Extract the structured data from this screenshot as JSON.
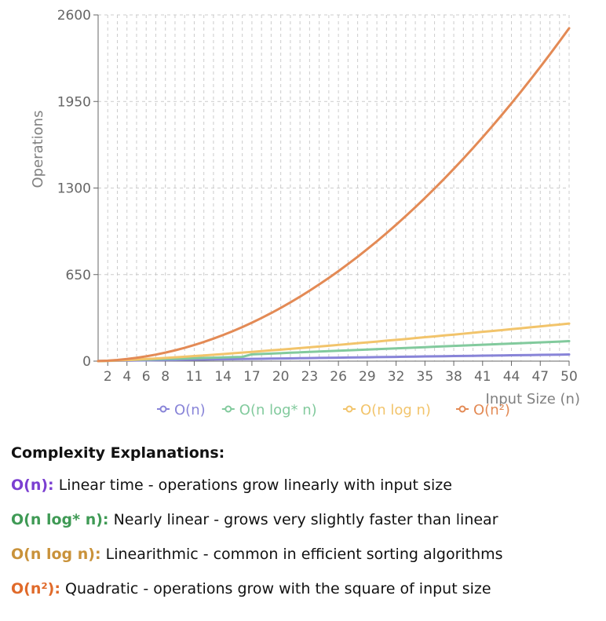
{
  "chart_data": {
    "type": "line",
    "title": "",
    "xlabel": "Input Size (n)",
    "ylabel": "Operations",
    "x": [
      1,
      2,
      3,
      4,
      5,
      6,
      7,
      8,
      9,
      10,
      11,
      12,
      13,
      14,
      15,
      16,
      17,
      18,
      19,
      20,
      21,
      22,
      23,
      24,
      25,
      26,
      27,
      28,
      29,
      30,
      31,
      32,
      33,
      34,
      35,
      36,
      37,
      38,
      39,
      40,
      41,
      42,
      43,
      44,
      45,
      46,
      47,
      48,
      49,
      50
    ],
    "x_ticks": [
      2,
      4,
      6,
      8,
      11,
      14,
      17,
      20,
      23,
      26,
      29,
      32,
      35,
      38,
      41,
      44,
      47,
      50
    ],
    "xlim": [
      1,
      50
    ],
    "ylim": [
      0,
      2600
    ],
    "y_ticks": [
      0,
      650,
      1300,
      1950,
      2600
    ],
    "grid": true,
    "legend_position": "bottom",
    "series": [
      {
        "name": "O(n)",
        "color": "#8884d8",
        "values": [
          1,
          2,
          3,
          4,
          5,
          6,
          7,
          8,
          9,
          10,
          11,
          12,
          13,
          14,
          15,
          16,
          17,
          18,
          19,
          20,
          21,
          22,
          23,
          24,
          25,
          26,
          27,
          28,
          29,
          30,
          31,
          32,
          33,
          34,
          35,
          36,
          37,
          38,
          39,
          40,
          41,
          42,
          43,
          44,
          45,
          46,
          47,
          48,
          49,
          50
        ]
      },
      {
        "name": "O(n log* n)",
        "color": "#82ca9d",
        "values": [
          0,
          2,
          6,
          8,
          10,
          12,
          14,
          16,
          18,
          20,
          22,
          24,
          26,
          28,
          30,
          32,
          51,
          54,
          57,
          60,
          63,
          66,
          69,
          72,
          75,
          78,
          81,
          84,
          87,
          90,
          93,
          96,
          99,
          102,
          105,
          108,
          111,
          114,
          117,
          120,
          123,
          126,
          129,
          132,
          135,
          138,
          141,
          144,
          147,
          150
        ]
      },
      {
        "name": "O(n log n)",
        "color": "#f2c46b",
        "values": [
          0,
          2,
          5,
          8,
          12,
          16,
          20,
          24,
          29,
          33,
          38,
          43,
          48,
          53,
          59,
          64,
          69,
          75,
          81,
          86,
          92,
          98,
          104,
          110,
          116,
          122,
          128,
          135,
          141,
          147,
          154,
          160,
          166,
          173,
          180,
          186,
          193,
          199,
          206,
          213,
          220,
          226,
          233,
          240,
          247,
          254,
          261,
          268,
          275,
          282
        ]
      },
      {
        "name": "O(n²)",
        "color": "#e38a55",
        "values": [
          1,
          4,
          9,
          16,
          25,
          36,
          49,
          64,
          81,
          100,
          121,
          144,
          169,
          196,
          225,
          256,
          289,
          324,
          361,
          400,
          441,
          484,
          529,
          576,
          625,
          676,
          729,
          784,
          841,
          900,
          961,
          1024,
          1089,
          1156,
          1225,
          1296,
          1369,
          1444,
          1521,
          1600,
          1681,
          1764,
          1849,
          1936,
          2025,
          2116,
          2209,
          2304,
          2401,
          2500
        ]
      }
    ]
  },
  "explanations": {
    "heading": "Complexity Explanations:",
    "items": [
      {
        "term": "O(n):",
        "text": "Linear time - operations grow linearly with input size",
        "color": "#7b3fd1"
      },
      {
        "term": "O(n log* n):",
        "text": "Nearly linear - grows very slightly faster than linear",
        "color": "#3f9a55"
      },
      {
        "term": "O(n log n):",
        "text": "Linearithmic - common in efficient sorting algorithms",
        "color": "#c9923a"
      },
      {
        "term": "O(n²):",
        "text": "Quadratic - operations grow with the square of input size",
        "color": "#e06a2a"
      }
    ]
  }
}
